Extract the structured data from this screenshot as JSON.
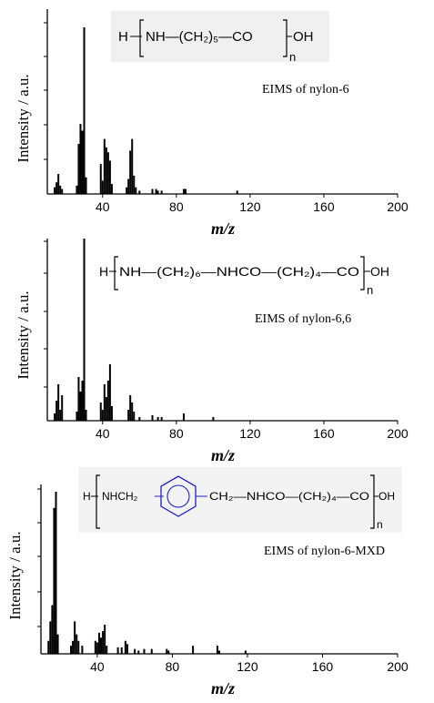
{
  "chart_data": [
    {
      "type": "bar",
      "ylabel": "Intensity / a.u.",
      "xlabel": "m/z",
      "xlim": [
        10,
        200
      ],
      "xticks": [
        40,
        80,
        120,
        160,
        200
      ],
      "annotation": "EIMS of nylon-6",
      "formula": {
        "head": "H",
        "repeat": "NH—(CH₂)₅—CO",
        "tail": "OH",
        "subscript": "n"
      },
      "ylim": [
        0,
        100
      ],
      "peaks": [
        {
          "x": 14,
          "y": 4
        },
        {
          "x": 15,
          "y": 7
        },
        {
          "x": 16,
          "y": 12
        },
        {
          "x": 17,
          "y": 5
        },
        {
          "x": 18,
          "y": 3
        },
        {
          "x": 26,
          "y": 5
        },
        {
          "x": 27,
          "y": 30
        },
        {
          "x": 28,
          "y": 42
        },
        {
          "x": 29,
          "y": 38
        },
        {
          "x": 30,
          "y": 100
        },
        {
          "x": 31,
          "y": 10
        },
        {
          "x": 39,
          "y": 18
        },
        {
          "x": 40,
          "y": 8
        },
        {
          "x": 41,
          "y": 33
        },
        {
          "x": 42,
          "y": 28
        },
        {
          "x": 43,
          "y": 25
        },
        {
          "x": 44,
          "y": 20
        },
        {
          "x": 45,
          "y": 6
        },
        {
          "x": 53,
          "y": 4
        },
        {
          "x": 54,
          "y": 9
        },
        {
          "x": 55,
          "y": 26
        },
        {
          "x": 56,
          "y": 33
        },
        {
          "x": 57,
          "y": 11
        },
        {
          "x": 58,
          "y": 4
        },
        {
          "x": 60,
          "y": 2
        },
        {
          "x": 67,
          "y": 3
        },
        {
          "x": 69,
          "y": 3
        },
        {
          "x": 70,
          "y": 2
        },
        {
          "x": 72,
          "y": 2
        },
        {
          "x": 84,
          "y": 3
        },
        {
          "x": 85,
          "y": 3
        },
        {
          "x": 113,
          "y": 2
        }
      ]
    },
    {
      "type": "bar",
      "ylabel": "Intensity / a.u.",
      "xlabel": "m/z",
      "xlim": [
        10,
        200
      ],
      "xticks": [
        40,
        80,
        120,
        160,
        200
      ],
      "annotation": "EIMS of nylon-6,6",
      "formula": {
        "head": "H",
        "repeat": "NH—(CH₂)₆—NHCO—(CH₂)₄—CO",
        "tail": "OH",
        "subscript": "n"
      },
      "ylim": [
        0,
        100
      ],
      "peaks": [
        {
          "x": 14,
          "y": 4
        },
        {
          "x": 15,
          "y": 11
        },
        {
          "x": 16,
          "y": 20
        },
        {
          "x": 17,
          "y": 6
        },
        {
          "x": 18,
          "y": 14
        },
        {
          "x": 26,
          "y": 5
        },
        {
          "x": 27,
          "y": 24
        },
        {
          "x": 28,
          "y": 16
        },
        {
          "x": 29,
          "y": 22
        },
        {
          "x": 30,
          "y": 100
        },
        {
          "x": 31,
          "y": 6
        },
        {
          "x": 39,
          "y": 10
        },
        {
          "x": 40,
          "y": 6
        },
        {
          "x": 41,
          "y": 20
        },
        {
          "x": 42,
          "y": 13
        },
        {
          "x": 43,
          "y": 22
        },
        {
          "x": 44,
          "y": 31
        },
        {
          "x": 45,
          "y": 8
        },
        {
          "x": 54,
          "y": 6
        },
        {
          "x": 55,
          "y": 14
        },
        {
          "x": 56,
          "y": 10
        },
        {
          "x": 57,
          "y": 5
        },
        {
          "x": 60,
          "y": 2
        },
        {
          "x": 67,
          "y": 3
        },
        {
          "x": 70,
          "y": 2
        },
        {
          "x": 72,
          "y": 2
        },
        {
          "x": 84,
          "y": 4
        },
        {
          "x": 100,
          "y": 2
        }
      ]
    },
    {
      "type": "bar",
      "ylabel": "Intensity / a.u.",
      "xlabel": "m/z",
      "xlim": [
        10,
        200
      ],
      "xticks": [
        40,
        80,
        120,
        160,
        200
      ],
      "annotation": "EIMS of nylon-6-MXD",
      "formula": {
        "head": "H",
        "left": "NHCH₂",
        "right": "CH₂—NHCO—(CH₂)₄—CO",
        "tail": "OH",
        "subscript": "n",
        "ring_color": "#2020c8"
      },
      "ylim": [
        0,
        100
      ],
      "peaks": [
        {
          "x": 14,
          "y": 8
        },
        {
          "x": 15,
          "y": 20
        },
        {
          "x": 16,
          "y": 30
        },
        {
          "x": 17,
          "y": 90
        },
        {
          "x": 18,
          "y": 100
        },
        {
          "x": 19,
          "y": 12
        },
        {
          "x": 26,
          "y": 5
        },
        {
          "x": 27,
          "y": 8
        },
        {
          "x": 28,
          "y": 20
        },
        {
          "x": 29,
          "y": 12
        },
        {
          "x": 30,
          "y": 8
        },
        {
          "x": 32,
          "y": 5
        },
        {
          "x": 39,
          "y": 8
        },
        {
          "x": 40,
          "y": 7
        },
        {
          "x": 41,
          "y": 13
        },
        {
          "x": 42,
          "y": 10
        },
        {
          "x": 43,
          "y": 14
        },
        {
          "x": 44,
          "y": 18
        },
        {
          "x": 45,
          "y": 5
        },
        {
          "x": 51,
          "y": 4
        },
        {
          "x": 53,
          "y": 4
        },
        {
          "x": 55,
          "y": 8
        },
        {
          "x": 56,
          "y": 6
        },
        {
          "x": 60,
          "y": 3
        },
        {
          "x": 62,
          "y": 2
        },
        {
          "x": 65,
          "y": 3
        },
        {
          "x": 69,
          "y": 3
        },
        {
          "x": 77,
          "y": 3
        },
        {
          "x": 78,
          "y": 2
        },
        {
          "x": 91,
          "y": 5
        },
        {
          "x": 104,
          "y": 5
        },
        {
          "x": 105,
          "y": 2
        },
        {
          "x": 119,
          "y": 2
        }
      ]
    }
  ]
}
